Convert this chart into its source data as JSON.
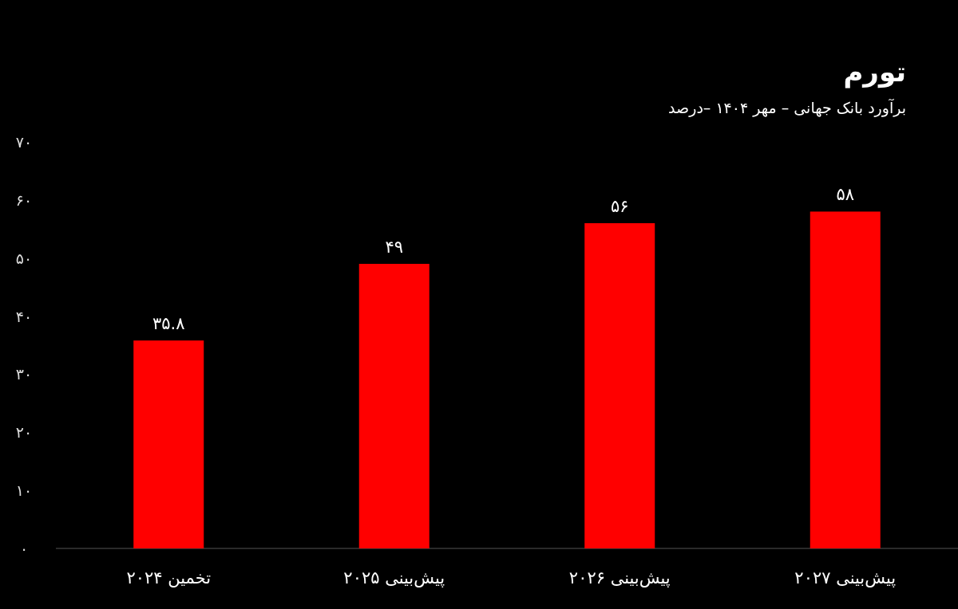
{
  "chart_data": {
    "type": "bar",
    "title": "تورم",
    "subtitle": "برآورد بانک جهانی – مهر ۱۴۰۴ –درصد",
    "categories": [
      "تخمین ۲۰۲۴",
      "پیش‌بینی ۲۰۲۵",
      "پیش‌بینی ۲۰۲۶",
      "پیش‌بینی ۲۰۲۷"
    ],
    "values": [
      35.8,
      49,
      56,
      58
    ],
    "value_labels": [
      "۳۵.۸",
      "۴۹",
      "۵۶",
      "۵۸"
    ],
    "color": "#ff0000",
    "ylim": [
      0,
      70
    ],
    "yticks": [
      {
        "value": 0,
        "label": "۰"
      },
      {
        "value": 10,
        "label": "۱۰"
      },
      {
        "value": 20,
        "label": "۲۰"
      },
      {
        "value": 30,
        "label": "۳۰"
      },
      {
        "value": 40,
        "label": "۴۰"
      },
      {
        "value": 50,
        "label": "۵۰"
      },
      {
        "value": 60,
        "label": "۶۰"
      },
      {
        "value": 70,
        "label": "۷۰"
      }
    ]
  }
}
